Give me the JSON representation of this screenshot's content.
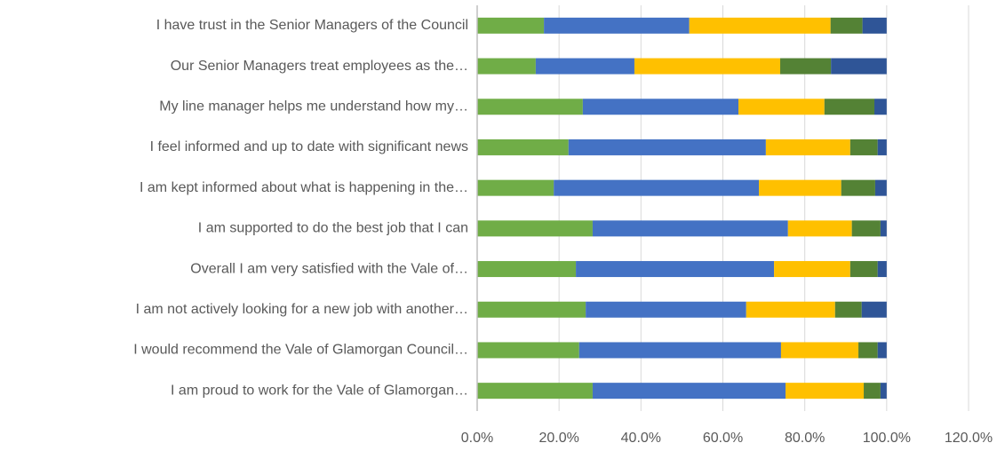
{
  "chart_data": {
    "type": "stacked_barh",
    "categories": [
      "I have trust in the Senior Managers of the Council",
      "Our Senior Managers treat employees as the…",
      "My line manager helps me understand how my…",
      "I feel informed and up to date with significant news",
      "I am kept informed about what is happening in the…",
      "I am supported to do the best job that I can",
      "Overall I am very satisfied with the Vale of…",
      "I am not actively looking for a new job with another…",
      "I would recommend the Vale of Glamorgan Council…",
      "I am proud to work for the Vale of Glamorgan…"
    ],
    "series": [
      {
        "color": "#70ad47",
        "values": [
          16.3,
          14.3,
          25.8,
          22.3,
          18.7,
          28.2,
          24.1,
          26.5,
          24.9,
          28.2
        ]
      },
      {
        "color": "#4472c4",
        "values": [
          35.5,
          24.1,
          38.0,
          48.2,
          50.1,
          47.7,
          48.4,
          39.2,
          49.3,
          47.1
        ]
      },
      {
        "color": "#ffc000",
        "values": [
          34.5,
          35.6,
          21.0,
          20.6,
          20.1,
          15.6,
          18.6,
          21.7,
          18.9,
          19.1
        ]
      },
      {
        "color": "#548235",
        "values": [
          7.8,
          12.4,
          12.2,
          6.7,
          8.3,
          7.0,
          6.7,
          6.5,
          4.7,
          4.1
        ]
      },
      {
        "color": "#2f5597",
        "values": [
          5.9,
          13.6,
          3.0,
          2.2,
          2.8,
          1.5,
          2.2,
          6.1,
          2.2,
          1.5
        ]
      }
    ],
    "xlim": [
      0,
      120
    ],
    "xticks": [
      {
        "value": 0,
        "label": "0.0%"
      },
      {
        "value": 20,
        "label": "20.0%"
      },
      {
        "value": 40,
        "label": "40.0%"
      },
      {
        "value": 60,
        "label": "60.0%"
      },
      {
        "value": 80,
        "label": "80.0%"
      },
      {
        "value": 100,
        "label": "100.0%"
      },
      {
        "value": 120,
        "label": "120.0%"
      }
    ],
    "grid": true
  }
}
